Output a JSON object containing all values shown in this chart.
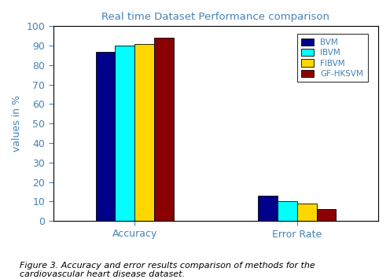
{
  "title": "Real time Dataset Performance comparison",
  "xlabel": "",
  "ylabel": "values in %",
  "categories": [
    "Accuracy",
    "Error Rate"
  ],
  "series": [
    {
      "label": "BVM",
      "color": "#00008B",
      "values": [
        87,
        13
      ]
    },
    {
      "label": "IBVM",
      "color": "#00FFFF",
      "values": [
        90,
        10
      ]
    },
    {
      "label": "FIBVM",
      "color": "#FFD700",
      "values": [
        91,
        9
      ]
    },
    {
      "label": "GF-HKSVM",
      "color": "#8B0000",
      "values": [
        94,
        6
      ]
    }
  ],
  "ylim": [
    0,
    100
  ],
  "yticks": [
    0,
    10,
    20,
    30,
    40,
    50,
    60,
    70,
    80,
    90,
    100
  ],
  "bar_width": 0.12,
  "title_color": "#4682B4",
  "axis_color": "#000000",
  "tick_color": "#4682B4",
  "label_color": "#4682B4",
  "legend_label_color": "#4682B4",
  "background_color": "#ffffff",
  "figcaption_line1": "Figure 3. Accuracy and error results comparison of methods for the",
  "figcaption_line2": "cardiovascular heart disease dataset."
}
